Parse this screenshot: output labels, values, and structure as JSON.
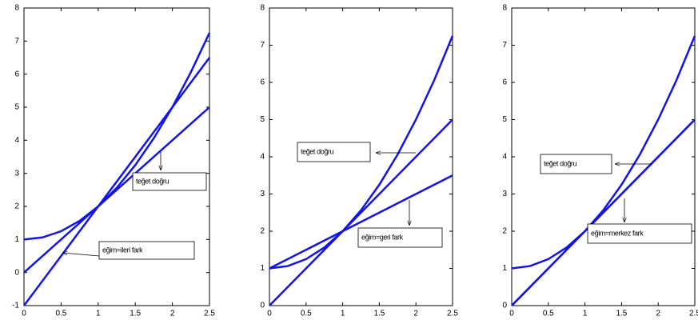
{
  "chart_data": [
    {
      "type": "line",
      "xlim": [
        0,
        2.5
      ],
      "xticks": [
        0,
        0.5,
        1,
        1.5,
        2,
        2.5
      ],
      "ylim": [
        -1,
        8
      ],
      "yticks": [
        -1,
        0,
        1,
        2,
        3,
        4,
        5,
        6,
        7,
        8
      ],
      "series": [
        {
          "color": "#1414e6",
          "x": [
            0,
            0.25,
            0.5,
            0.75,
            1,
            1.25,
            1.5,
            1.75,
            2,
            2.25,
            2.5
          ],
          "values": [
            1,
            1.0625,
            1.25,
            1.5625,
            2,
            2.5625,
            3.25,
            4.0625,
            5,
            6.0625,
            7.25
          ]
        },
        {
          "color": "#1414e6",
          "x": [
            0,
            2.5
          ],
          "values": [
            0,
            5
          ]
        },
        {
          "color": "#1414e6",
          "x": [
            0,
            2.5
          ],
          "values": [
            -1,
            6.5
          ]
        }
      ],
      "annotations": [
        "teğet doğru",
        "eğim=ileri fark"
      ]
    },
    {
      "type": "line",
      "xlim": [
        0,
        2.5
      ],
      "xticks": [
        0,
        0.5,
        1,
        1.5,
        2,
        2.5
      ],
      "ylim": [
        0,
        8
      ],
      "yticks": [
        0,
        1,
        2,
        3,
        4,
        5,
        6,
        7,
        8
      ],
      "series": [
        {
          "color": "#1414e6",
          "x": [
            0,
            0.25,
            0.5,
            0.75,
            1,
            1.25,
            1.5,
            1.75,
            2,
            2.25,
            2.5
          ],
          "values": [
            1,
            1.0625,
            1.25,
            1.5625,
            2,
            2.5625,
            3.25,
            4.0625,
            5,
            6.0625,
            7.25
          ]
        },
        {
          "color": "#1414e6",
          "x": [
            0,
            2.5
          ],
          "values": [
            0,
            5
          ]
        },
        {
          "color": "#1414e6",
          "x": [
            0,
            2.5
          ],
          "values": [
            1,
            3.5
          ]
        }
      ],
      "annotations": [
        "teğet doğru",
        "eğim=geri fark"
      ]
    },
    {
      "type": "line",
      "xlim": [
        0,
        2.5
      ],
      "xticks": [
        0,
        0.5,
        1,
        1.5,
        2,
        2.5
      ],
      "ylim": [
        0,
        8
      ],
      "yticks": [
        0,
        1,
        2,
        3,
        4,
        5,
        6,
        7,
        8
      ],
      "series": [
        {
          "color": "#1414e6",
          "x": [
            0,
            0.25,
            0.5,
            0.75,
            1,
            1.25,
            1.5,
            1.75,
            2,
            2.25,
            2.5
          ],
          "values": [
            1,
            1.0625,
            1.25,
            1.5625,
            2,
            2.5625,
            3.25,
            4.0625,
            5,
            6.0625,
            7.25
          ]
        },
        {
          "color": "#1414e6",
          "x": [
            0,
            2.5
          ],
          "values": [
            0,
            5
          ]
        },
        {
          "color": "#1414e6",
          "x": [
            0,
            2.5
          ],
          "values": [
            0,
            5
          ]
        }
      ],
      "annotations": [
        "teğet doğru",
        "eğim=merkez fark"
      ]
    }
  ]
}
